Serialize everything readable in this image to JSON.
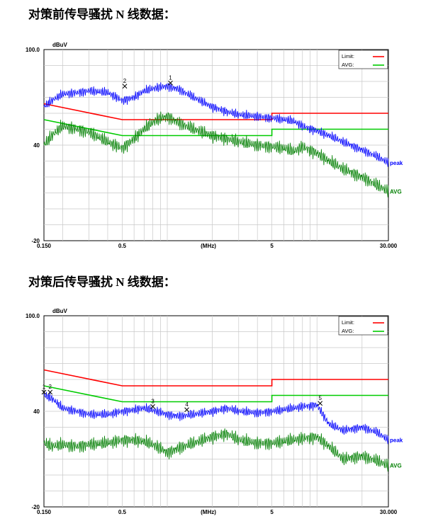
{
  "charts": [
    {
      "heading": "对策前传导骚扰 N 线数据：",
      "unit_label": "dBuV",
      "mhz_label": "(MHz)",
      "y_ticks": [
        {
          "value": 100,
          "label": "100.0"
        },
        {
          "value": 40,
          "label": "40"
        },
        {
          "value": -20,
          "label": "-20"
        }
      ],
      "x_ticks": [
        {
          "value": 0.15,
          "label": "0.150"
        },
        {
          "value": 0.5,
          "label": "0.5"
        },
        {
          "value": 5,
          "label": "5"
        },
        {
          "value": 30,
          "label": "30.000"
        }
      ],
      "legend": [
        {
          "label": "Limit:",
          "color": "#ff0000"
        },
        {
          "label": "AVG:",
          "color": "#00cc00"
        }
      ],
      "trace_labels": {
        "peak": "peak",
        "avg": "AVG"
      },
      "markers": [
        {
          "label": "1",
          "x": 1.05,
          "y": 79
        },
        {
          "label": "2",
          "x": 0.52,
          "y": 77
        }
      ]
    },
    {
      "heading": "对策后传导骚扰 N 线数据：",
      "unit_label": "dBuV",
      "mhz_label": "(MHz)",
      "y_ticks": [
        {
          "value": 100,
          "label": "100.0"
        },
        {
          "value": 40,
          "label": "40"
        },
        {
          "value": -20,
          "label": "-20"
        }
      ],
      "x_ticks": [
        {
          "value": 0.15,
          "label": "0.150"
        },
        {
          "value": 0.5,
          "label": "0.5"
        },
        {
          "value": 5,
          "label": "5"
        },
        {
          "value": 30,
          "label": "30.000"
        }
      ],
      "legend": [
        {
          "label": "Limit:",
          "color": "#ff0000"
        },
        {
          "label": "AVG:",
          "color": "#00cc00"
        }
      ],
      "trace_labels": {
        "peak": "peak",
        "avg": "AVG"
      },
      "markers": [
        {
          "label": "1",
          "x": 0.15,
          "y": 52
        },
        {
          "label": "2",
          "x": 0.165,
          "y": 52
        },
        {
          "label": "3",
          "x": 0.8,
          "y": 43
        },
        {
          "label": "4",
          "x": 1.35,
          "y": 41
        },
        {
          "label": "5",
          "x": 10.5,
          "y": 45
        }
      ]
    }
  ],
  "chart_data": [
    {
      "type": "line",
      "title": "对策前传导骚扰 N 线数据：",
      "xlabel": "(MHz)",
      "ylabel": "dBuV",
      "x_scale": "log",
      "xlim": [
        0.15,
        30
      ],
      "ylim": [
        -20,
        100
      ],
      "grid": true,
      "legend_position": "top-right",
      "limit_lines": [
        {
          "name": "Limit",
          "color": "#ff0000",
          "x": [
            0.15,
            0.5,
            0.5,
            5,
            5,
            30
          ],
          "y": [
            66,
            56,
            56,
            56,
            60,
            60
          ]
        },
        {
          "name": "AVG",
          "color": "#00cc00",
          "x": [
            0.15,
            0.5,
            0.5,
            5,
            5,
            30
          ],
          "y": [
            56,
            46,
            46,
            46,
            50,
            50
          ]
        }
      ],
      "series": [
        {
          "name": "peak",
          "color": "#0000ff",
          "x": [
            0.15,
            0.17,
            0.2,
            0.25,
            0.3,
            0.4,
            0.5,
            0.6,
            0.7,
            0.85,
            1.0,
            1.2,
            1.5,
            2.0,
            2.5,
            3.0,
            4.0,
            5.0,
            6.0,
            7.0,
            8.0,
            10.0,
            12.0,
            15.0,
            20.0,
            25.0,
            30.0
          ],
          "y": [
            64,
            68,
            72,
            73,
            74,
            73,
            68,
            70,
            74,
            76,
            77,
            75,
            70,
            64,
            61,
            59,
            58,
            57,
            56,
            55,
            52,
            49,
            46,
            42,
            37,
            33,
            29
          ]
        },
        {
          "name": "AVG",
          "color": "#007f00",
          "x": [
            0.15,
            0.17,
            0.2,
            0.25,
            0.3,
            0.4,
            0.5,
            0.6,
            0.7,
            0.85,
            1.0,
            1.2,
            1.5,
            2.0,
            2.5,
            3.0,
            4.0,
            5.0,
            6.0,
            7.0,
            8.0,
            10.0,
            12.0,
            15.0,
            20.0,
            25.0,
            30.0
          ],
          "y": [
            40,
            46,
            52,
            50,
            48,
            42,
            38,
            44,
            50,
            56,
            58,
            54,
            50,
            46,
            44,
            42,
            40,
            39,
            38,
            36,
            39,
            35,
            30,
            25,
            20,
            15,
            11
          ]
        }
      ]
    },
    {
      "type": "line",
      "title": "对策后传导骚扰 N 线数据：",
      "xlabel": "(MHz)",
      "ylabel": "dBuV",
      "x_scale": "log",
      "xlim": [
        0.15,
        30
      ],
      "ylim": [
        -20,
        100
      ],
      "grid": true,
      "legend_position": "top-right",
      "limit_lines": [
        {
          "name": "Limit",
          "color": "#ff0000",
          "x": [
            0.15,
            0.5,
            0.5,
            5,
            5,
            30
          ],
          "y": [
            66,
            56,
            56,
            56,
            60,
            60
          ]
        },
        {
          "name": "AVG",
          "color": "#00cc00",
          "x": [
            0.15,
            0.5,
            0.5,
            5,
            5,
            30
          ],
          "y": [
            56,
            46,
            46,
            46,
            50,
            50
          ]
        }
      ],
      "series": [
        {
          "name": "peak",
          "color": "#0000ff",
          "x": [
            0.15,
            0.17,
            0.2,
            0.25,
            0.3,
            0.4,
            0.5,
            0.6,
            0.7,
            0.85,
            1.0,
            1.2,
            1.5,
            2.0,
            2.5,
            3.0,
            4.0,
            5.0,
            6.0,
            7.0,
            8.0,
            10.0,
            12.0,
            15.0,
            20.0,
            25.0,
            30.0
          ],
          "y": [
            50,
            48,
            42,
            40,
            38,
            38,
            40,
            41,
            42,
            40,
            38,
            37,
            38,
            40,
            42,
            40,
            39,
            40,
            41,
            42,
            43,
            44,
            32,
            28,
            30,
            27,
            22
          ]
        },
        {
          "name": "AVG",
          "color": "#007f00",
          "x": [
            0.15,
            0.17,
            0.2,
            0.25,
            0.3,
            0.4,
            0.5,
            0.6,
            0.7,
            0.85,
            1.0,
            1.2,
            1.5,
            2.0,
            2.5,
            3.0,
            4.0,
            5.0,
            6.0,
            7.0,
            8.0,
            10.0,
            12.0,
            15.0,
            20.0,
            25.0,
            30.0
          ],
          "y": [
            20,
            18,
            19,
            18,
            19,
            20,
            22,
            22,
            21,
            18,
            14,
            17,
            20,
            24,
            26,
            22,
            20,
            20,
            21,
            22,
            23,
            24,
            18,
            10,
            12,
            9,
            6
          ]
        }
      ]
    }
  ]
}
